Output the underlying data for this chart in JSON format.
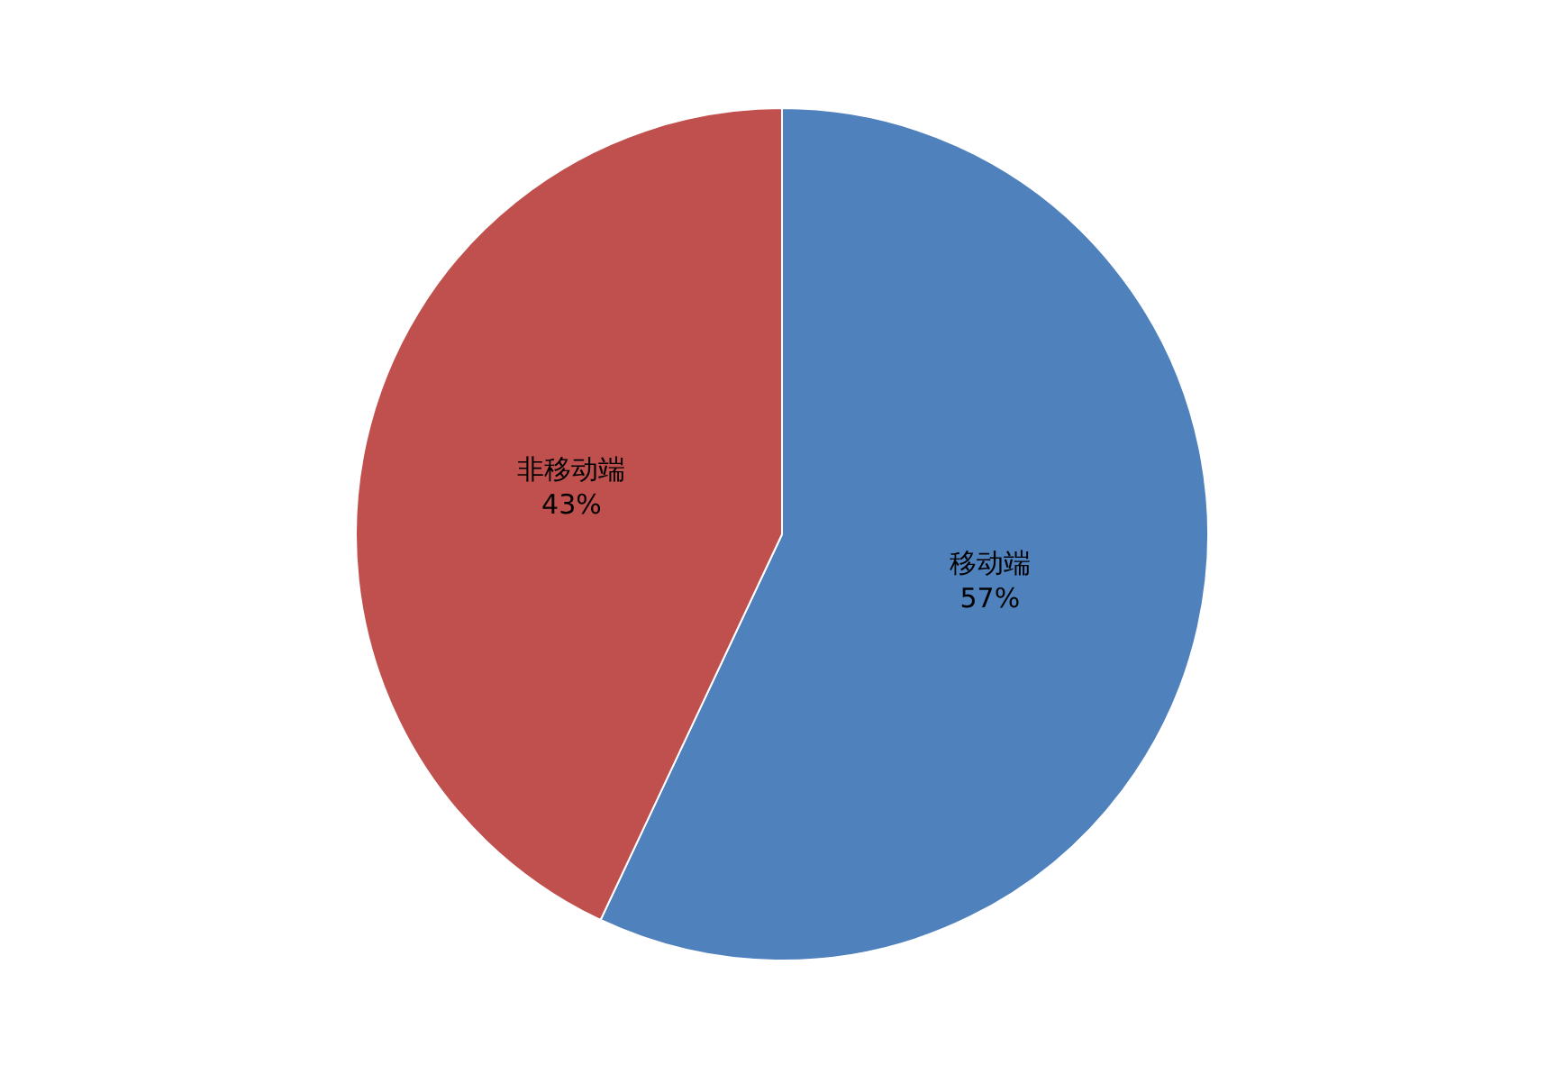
{
  "chart_data": {
    "type": "pie",
    "categories": [
      "移动端",
      "非移动端"
    ],
    "values": [
      57,
      43
    ],
    "value_labels": [
      "57%",
      "43%"
    ],
    "colors": [
      "#4f81bd",
      "#c0504d"
    ],
    "legend": false
  }
}
